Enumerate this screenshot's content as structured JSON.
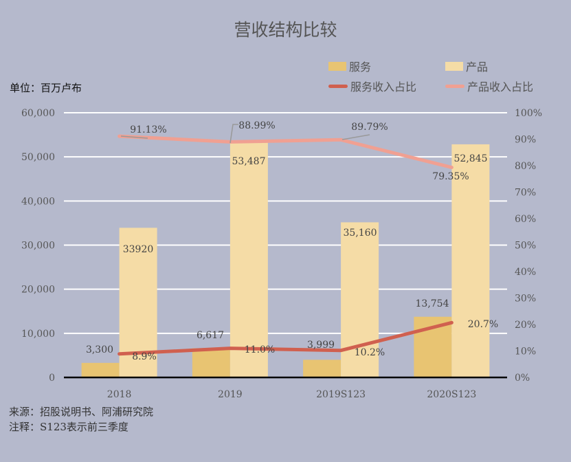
{
  "title": "营收结构比较",
  "unit_label": "单位：百万卢布",
  "legend": [
    {
      "label": "服务",
      "type": "bar",
      "color": "#e8c472"
    },
    {
      "label": "产品",
      "type": "bar",
      "color": "#f5dca6"
    },
    {
      "label": "服务收入占比",
      "type": "line",
      "color": "#d0604f"
    },
    {
      "label": "产品收入占比",
      "type": "line",
      "color": "#f0a092"
    }
  ],
  "footer": {
    "source": "来源：招股说明书、阿浦研究院",
    "note": "注释：S123表示前三季度"
  },
  "chart_data": {
    "type": "bar",
    "title": "营收结构比较",
    "xlabel": "",
    "ylabel": "单位：百万卢布",
    "y2label": "",
    "categories": [
      "2018",
      "2019",
      "2019S123",
      "2020S123"
    ],
    "series": [
      {
        "name": "服务",
        "type": "bar",
        "axis": "left",
        "values": [
          3300,
          6617,
          3999,
          13754
        ],
        "labels": [
          "3,300",
          "6,617",
          "3,999",
          "13,754"
        ],
        "color": "#e8c472"
      },
      {
        "name": "产品",
        "type": "bar",
        "axis": "left",
        "values": [
          33920,
          53487,
          35160,
          52845
        ],
        "labels": [
          "33920",
          "53,487",
          "35,160",
          "52,845"
        ],
        "color": "#f5dca6"
      },
      {
        "name": "服务收入占比",
        "type": "line",
        "axis": "right",
        "values": [
          8.9,
          11.0,
          10.2,
          20.7
        ],
        "labels": [
          "8.9%",
          "11.0%",
          "10.2%",
          "20.7%"
        ],
        "color": "#d0604f"
      },
      {
        "name": "产品收入占比",
        "type": "line",
        "axis": "right",
        "values": [
          91.13,
          88.99,
          89.79,
          79.35
        ],
        "labels": [
          "91.13%",
          "88.99%",
          "89.79%",
          "79.35%"
        ],
        "color": "#f0a092"
      }
    ],
    "ylim": [
      0,
      60000
    ],
    "y_ticks": [
      "0",
      "10,000",
      "20,000",
      "30,000",
      "40,000",
      "50,000",
      "60,000"
    ],
    "y2lim": [
      0,
      100
    ],
    "y2_ticks": [
      "0%",
      "10%",
      "20%",
      "30%",
      "40%",
      "50%",
      "60%",
      "70%",
      "80%",
      "90%",
      "100%"
    ],
    "grid": true,
    "legend_position": "top-right"
  }
}
